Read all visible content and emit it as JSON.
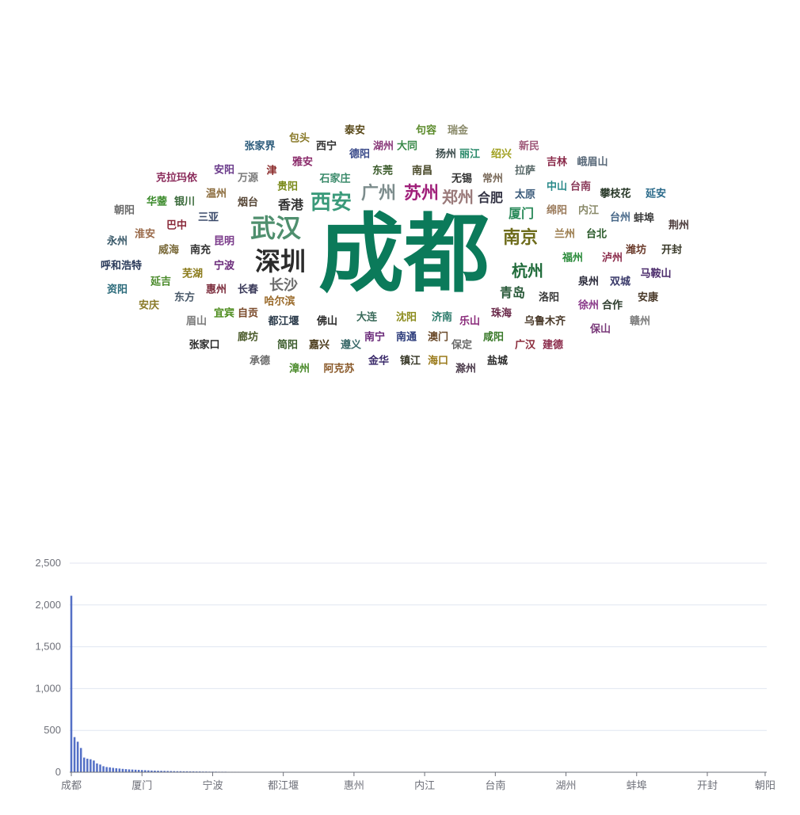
{
  "chart_data": [
    {
      "type": "wordcloud",
      "words": [
        {
          "text": "成都",
          "color": "#0b7a5a"
        },
        {
          "text": "武汉",
          "color": "#4f8f6e"
        },
        {
          "text": "深圳",
          "color": "#2b2b2b"
        },
        {
          "text": "西安",
          "color": "#3a9a7a"
        },
        {
          "text": "广州",
          "color": "#7c8c8c"
        },
        {
          "text": "苏州",
          "color": "#a0207a"
        },
        {
          "text": "郑州",
          "color": "#9a7a7a"
        },
        {
          "text": "南京",
          "color": "#6d6b1a"
        },
        {
          "text": "杭州",
          "color": "#1f6b3a"
        },
        {
          "text": "长沙",
          "color": "#6b6b6b"
        },
        {
          "text": "香港",
          "color": "#333333"
        },
        {
          "text": "合肥",
          "color": "#333344"
        },
        {
          "text": "厦门",
          "color": "#2a8a5a"
        },
        {
          "text": "青岛",
          "color": "#2a5a3a"
        },
        {
          "text": "泰安",
          "color": "#5a4a1a"
        },
        {
          "text": "句容",
          "color": "#5a8a2a"
        },
        {
          "text": "瑞金",
          "color": "#8a8a6a"
        },
        {
          "text": "包头",
          "color": "#8a7a2a"
        },
        {
          "text": "西宁",
          "color": "#333333"
        },
        {
          "text": "湖州",
          "color": "#8a3a7a"
        },
        {
          "text": "大同",
          "color": "#3a8a4a"
        },
        {
          "text": "张家界",
          "color": "#2a5a7a"
        },
        {
          "text": "德阳",
          "color": "#3a4a8a"
        },
        {
          "text": "扬州",
          "color": "#3a4a4a"
        },
        {
          "text": "丽江",
          "color": "#2a8a6a"
        },
        {
          "text": "绍兴",
          "color": "#a0a020"
        },
        {
          "text": "新民",
          "color": "#a05a7a"
        },
        {
          "text": "雅安",
          "color": "#8a2a6a"
        },
        {
          "text": "东莞",
          "color": "#3a5a2a"
        },
        {
          "text": "南昌",
          "color": "#4a4a2a"
        },
        {
          "text": "吉林",
          "color": "#8a2a4a"
        },
        {
          "text": "峨眉山",
          "color": "#5a6a7a"
        },
        {
          "text": "安阳",
          "color": "#6a3a8a"
        },
        {
          "text": "津",
          "color": "#8a2a2a"
        },
        {
          "text": "克拉玛依",
          "color": "#8a2a5a"
        },
        {
          "text": "万源",
          "color": "#7a7a7a"
        },
        {
          "text": "石家庄",
          "color": "#3a8a6a"
        },
        {
          "text": "无锡",
          "color": "#333333"
        },
        {
          "text": "常州",
          "color": "#7a6a5a"
        },
        {
          "text": "拉萨",
          "color": "#5a6a6a"
        },
        {
          "text": "贵阳",
          "color": "#7a8a1a"
        },
        {
          "text": "中山",
          "color": "#2a8a8a"
        },
        {
          "text": "台南",
          "color": "#8a3a5a"
        },
        {
          "text": "温州",
          "color": "#8a6a3a"
        },
        {
          "text": "华蓥",
          "color": "#3a8a2a"
        },
        {
          "text": "银川",
          "color": "#3a6a3a"
        },
        {
          "text": "烟台",
          "color": "#5a4a3a"
        },
        {
          "text": "太原",
          "color": "#3a5a7a"
        },
        {
          "text": "攀枝花",
          "color": "#2a3a2a"
        },
        {
          "text": "延安",
          "color": "#2a6a8a"
        },
        {
          "text": "朝阳",
          "color": "#6a6a6a"
        },
        {
          "text": "三亚",
          "color": "#3a4a6a"
        },
        {
          "text": "绵阳",
          "color": "#9a7a5a"
        },
        {
          "text": "内江",
          "color": "#8a8a6a"
        },
        {
          "text": "台州",
          "color": "#4a6a8a"
        },
        {
          "text": "蚌埠",
          "color": "#3a3a3a"
        },
        {
          "text": "荆州",
          "color": "#4a3a3a"
        },
        {
          "text": "永州",
          "color": "#3a5a6a"
        },
        {
          "text": "淮安",
          "color": "#9a6a4a"
        },
        {
          "text": "巴中",
          "color": "#8a2a3a"
        },
        {
          "text": "昆明",
          "color": "#7a3a8a"
        },
        {
          "text": "兰州",
          "color": "#9a7a4a"
        },
        {
          "text": "台北",
          "color": "#2a5a2a"
        },
        {
          "text": "潍坊",
          "color": "#6a3a2a"
        },
        {
          "text": "开封",
          "color": "#3a3a2a"
        },
        {
          "text": "呼和浩特",
          "color": "#2a3a5a"
        },
        {
          "text": "威海",
          "color": "#7a6a3a"
        },
        {
          "text": "南充",
          "color": "#333333"
        },
        {
          "text": "宁波",
          "color": "#6a2a7a"
        },
        {
          "text": "福州",
          "color": "#2a8a3a"
        },
        {
          "text": "泸州",
          "color": "#8a2a4a"
        },
        {
          "text": "马鞍山",
          "color": "#4a2a6a"
        },
        {
          "text": "芜湖",
          "color": "#8a7a1a"
        },
        {
          "text": "延吉",
          "color": "#4a8a2a"
        },
        {
          "text": "资阳",
          "color": "#2a6a7a"
        },
        {
          "text": "惠州",
          "color": "#7a2a3a"
        },
        {
          "text": "长春",
          "color": "#3a3a5a"
        },
        {
          "text": "泉州",
          "color": "#2a2a3a"
        },
        {
          "text": "双城",
          "color": "#3a3a6a"
        },
        {
          "text": "安庆",
          "color": "#8a7a2a"
        },
        {
          "text": "东方",
          "color": "#4a5a6a"
        },
        {
          "text": "哈尔滨",
          "color": "#9a6a2a"
        },
        {
          "text": "洛阳",
          "color": "#3a3a3a"
        },
        {
          "text": "安康",
          "color": "#4a3a2a"
        },
        {
          "text": "徐州",
          "color": "#8a3a8a"
        },
        {
          "text": "合作",
          "color": "#2a3a2a"
        },
        {
          "text": "眉山",
          "color": "#7a7a7a"
        },
        {
          "text": "宜宾",
          "color": "#4a8a1a"
        },
        {
          "text": "自贡",
          "color": "#7a4a2a"
        },
        {
          "text": "大连",
          "color": "#3a6a5a"
        },
        {
          "text": "沈阳",
          "color": "#8a8a1a"
        },
        {
          "text": "济南",
          "color": "#2a7a6a"
        },
        {
          "text": "珠海",
          "color": "#6a2a4a"
        },
        {
          "text": "都江堰",
          "color": "#2a3a4a"
        },
        {
          "text": "佛山",
          "color": "#2a2a2a"
        },
        {
          "text": "乐山",
          "color": "#8a2a7a"
        },
        {
          "text": "乌鲁木齐",
          "color": "#4a3a2a"
        },
        {
          "text": "保山",
          "color": "#7a3a7a"
        },
        {
          "text": "赣州",
          "color": "#7a7a7a"
        },
        {
          "text": "廊坊",
          "color": "#4a5a2a"
        },
        {
          "text": "张家口",
          "color": "#2a2a2a"
        },
        {
          "text": "简阳",
          "color": "#3a5a2a"
        },
        {
          "text": "嘉兴",
          "color": "#4a3a1a"
        },
        {
          "text": "遵义",
          "color": "#3a6a6a"
        },
        {
          "text": "南宁",
          "color": "#6a2a7a"
        },
        {
          "text": "南通",
          "color": "#2a3a7a"
        },
        {
          "text": "澳门",
          "color": "#6a4a2a"
        },
        {
          "text": "保定",
          "color": "#6a6a6a"
        },
        {
          "text": "咸阳",
          "color": "#3a7a2a"
        },
        {
          "text": "广汉",
          "color": "#8a2a3a"
        },
        {
          "text": "建德",
          "color": "#8a2a4a"
        },
        {
          "text": "承德",
          "color": "#6a6a6a"
        },
        {
          "text": "漳州",
          "color": "#4a8a2a"
        },
        {
          "text": "阿克苏",
          "color": "#8a5a2a"
        },
        {
          "text": "金华",
          "color": "#3a2a6a"
        },
        {
          "text": "镇江",
          "color": "#3a3a2a"
        },
        {
          "text": "海口",
          "color": "#9a7a1a"
        },
        {
          "text": "滁州",
          "color": "#4a3a4a"
        },
        {
          "text": "盐城",
          "color": "#2a2a2a"
        }
      ]
    },
    {
      "type": "bar",
      "ylim": [
        0,
        2500
      ],
      "y_ticks": [
        "0",
        "500",
        "1,000",
        "1,500",
        "2,000",
        "2,500"
      ],
      "x_tick_labels": [
        "成都",
        "厦门",
        "宁波",
        "都江堰",
        "惠州",
        "内江",
        "台南",
        "湖州",
        "蚌埠",
        "开封",
        "朝阳"
      ],
      "values": [
        2110,
        420,
        365,
        290,
        175,
        162,
        155,
        140,
        105,
        92,
        72,
        62,
        58,
        52,
        48,
        44,
        40,
        37,
        34,
        32,
        30,
        28,
        26,
        24,
        22,
        20,
        19,
        18,
        17,
        16,
        15,
        14,
        13,
        12,
        12,
        11,
        11,
        10,
        10,
        9,
        9,
        8,
        8,
        7,
        7,
        7,
        6,
        6,
        6,
        5,
        5,
        5,
        5,
        4,
        4,
        4,
        4,
        4,
        3,
        3,
        3,
        3,
        3,
        3,
        3,
        3,
        2,
        2,
        2,
        2,
        2,
        2,
        2,
        2,
        2,
        2,
        2,
        2,
        2,
        2,
        1,
        1,
        1,
        1,
        1,
        1,
        1,
        1,
        1,
        1,
        1,
        1,
        1,
        1,
        1,
        1,
        1,
        1,
        1,
        1,
        1,
        1,
        1,
        1,
        1,
        1,
        1,
        1,
        1,
        1,
        1,
        1,
        1,
        1,
        1,
        1,
        1,
        1,
        1,
        1,
        1,
        1,
        1,
        1,
        1,
        1,
        1,
        1,
        1,
        1,
        1,
        1,
        1,
        1,
        1,
        1,
        1,
        1,
        1,
        1,
        1,
        1,
        1,
        1,
        1,
        1,
        1,
        1,
        1,
        1,
        1,
        1,
        1,
        1,
        1,
        1,
        1,
        1,
        1,
        1,
        1,
        1,
        1,
        1,
        1,
        1,
        1,
        1,
        1,
        1,
        1,
        1,
        1,
        1,
        1,
        1,
        1,
        1,
        1,
        1,
        1,
        1,
        1,
        1,
        1,
        1,
        1,
        1,
        1,
        1,
        1,
        1,
        1,
        1,
        1,
        1,
        1,
        1,
        1,
        1,
        1,
        1,
        1,
        1,
        1,
        1,
        1,
        1,
        1,
        1,
        1,
        1,
        1,
        1,
        1,
        1,
        1
      ],
      "bar_color": "#5470c6",
      "grid": true
    }
  ]
}
